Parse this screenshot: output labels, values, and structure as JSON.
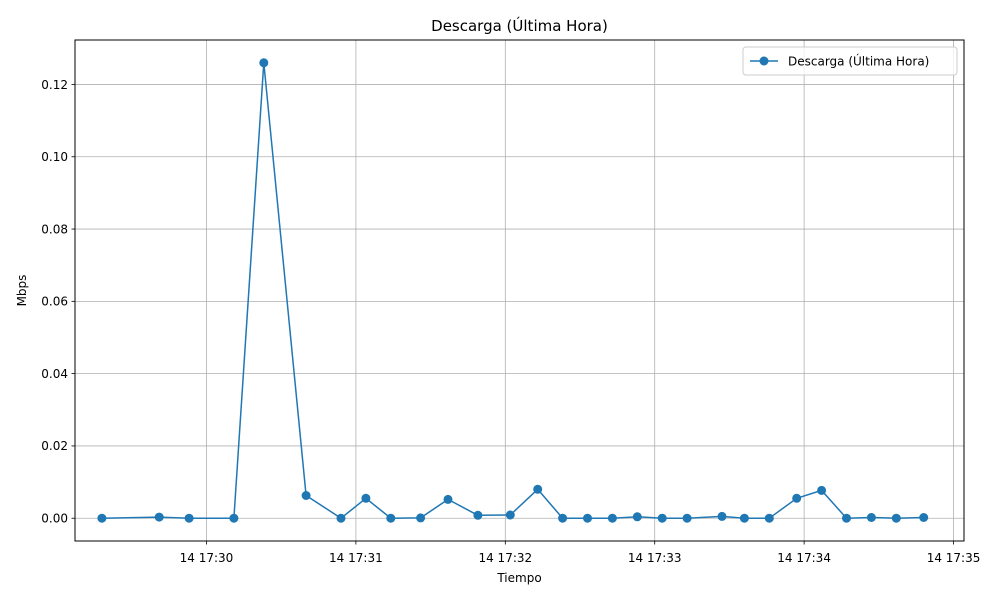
{
  "chart_data": {
    "type": "line",
    "title": "Descarga (Última Hora)",
    "xlabel": "Tiempo",
    "ylabel": "Mbps",
    "x_tick_labels": [
      "14 17:30",
      "14 17:31",
      "14 17:32",
      "14 17:33",
      "14 17:34",
      "14 17:35"
    ],
    "x_tick_minutes": [
      30,
      31,
      32,
      33,
      34,
      35
    ],
    "xlim_minutes": [
      29.12,
      35.07
    ],
    "y_tick_values": [
      0.0,
      0.02,
      0.04,
      0.06,
      0.08,
      0.1,
      0.12
    ],
    "y_tick_labels": [
      "0.00",
      "0.02",
      "0.04",
      "0.06",
      "0.08",
      "0.10",
      "0.12"
    ],
    "ylim": [
      -0.0063,
      0.1323
    ],
    "grid": true,
    "legend_position": "top-right",
    "series": [
      {
        "name": "Descarga (Última Hora)",
        "color": "#1f77b4",
        "marker": "circle",
        "points": [
          {
            "t": "14 17:29:18",
            "v": 0.0
          },
          {
            "t": "14 17:29:41",
            "v": 0.0003
          },
          {
            "t": "14 17:29:53",
            "v": 0.0
          },
          {
            "t": "14 17:30:11",
            "v": 0.0
          },
          {
            "t": "14 17:30:23",
            "v": 0.126
          },
          {
            "t": "14 17:30:40",
            "v": 0.0063
          },
          {
            "t": "14 17:30:54",
            "v": 0.0
          },
          {
            "t": "14 17:31:04",
            "v": 0.0055
          },
          {
            "t": "14 17:31:14",
            "v": 0.0
          },
          {
            "t": "14 17:31:26",
            "v": 0.0001
          },
          {
            "t": "14 17:31:37",
            "v": 0.0052
          },
          {
            "t": "14 17:31:49",
            "v": 0.0008
          },
          {
            "t": "14 17:32:02",
            "v": 0.0009
          },
          {
            "t": "14 17:32:13",
            "v": 0.008
          },
          {
            "t": "14 17:32:23",
            "v": 0.0
          },
          {
            "t": "14 17:32:33",
            "v": 0.0
          },
          {
            "t": "14 17:32:43",
            "v": 0.0
          },
          {
            "t": "14 17:32:53",
            "v": 0.0004
          },
          {
            "t": "14 17:33:03",
            "v": 0.0
          },
          {
            "t": "14 17:33:13",
            "v": 0.0
          },
          {
            "t": "14 17:33:27",
            "v": 0.0005
          },
          {
            "t": "14 17:33:36",
            "v": 0.0
          },
          {
            "t": "14 17:33:46",
            "v": 0.0
          },
          {
            "t": "14 17:33:57",
            "v": 0.0055
          },
          {
            "t": "14 17:34:07",
            "v": 0.0077
          },
          {
            "t": "14 17:34:17",
            "v": 0.0
          },
          {
            "t": "14 17:34:27",
            "v": 0.0002
          },
          {
            "t": "14 17:34:37",
            "v": 0.0
          },
          {
            "t": "14 17:34:48",
            "v": 0.0002
          }
        ]
      }
    ]
  }
}
